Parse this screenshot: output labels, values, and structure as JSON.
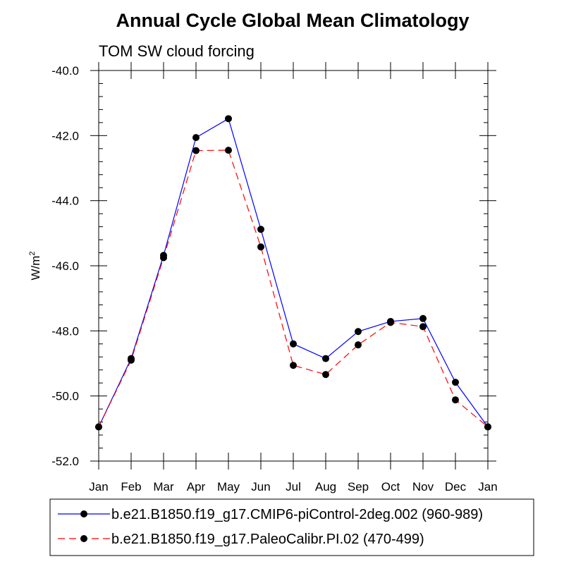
{
  "chart_data": {
    "type": "line",
    "title": "Annual Cycle Global Mean Climatology",
    "subtitle": "TOM SW cloud forcing",
    "ylabel": "W/m",
    "ylabel_sup": "2",
    "xlabel": "",
    "categories": [
      "Jan",
      "Feb",
      "Mar",
      "Apr",
      "May",
      "Jun",
      "Jul",
      "Aug",
      "Sep",
      "Oct",
      "Nov",
      "Dec",
      "Jan"
    ],
    "ylim": [
      -52.0,
      -40.0
    ],
    "yticks": [
      -52.0,
      -50.0,
      -48.0,
      -46.0,
      -44.0,
      -42.0,
      -40.0
    ],
    "ytick_labels": [
      "-52.0",
      "-50.0",
      "-48.0",
      "-46.0",
      "-44.0",
      "-42.0",
      "-40.0"
    ],
    "series": [
      {
        "name": "b.e21.B1850.f19_g17.CMIP6-piControl-2deg.002 (960-989)",
        "color": "#0000ff",
        "dash": "solid",
        "values": [
          -50.95,
          -48.85,
          -45.68,
          -42.06,
          -41.48,
          -44.88,
          -48.4,
          -48.85,
          -48.02,
          -47.71,
          -47.62,
          -49.58,
          -50.95
        ]
      },
      {
        "name": "b.e21.B1850.f19_g17.PaleoCalibr.PI.02 (470-499)",
        "color": "#ff0000",
        "dash": "dashed",
        "values": [
          -50.95,
          -48.9,
          -45.75,
          -42.46,
          -42.45,
          -45.42,
          -49.06,
          -49.34,
          -48.43,
          -47.74,
          -47.87,
          -50.12,
          -50.95
        ]
      }
    ],
    "marker_color": "#000000",
    "legend_position": "bottom"
  }
}
